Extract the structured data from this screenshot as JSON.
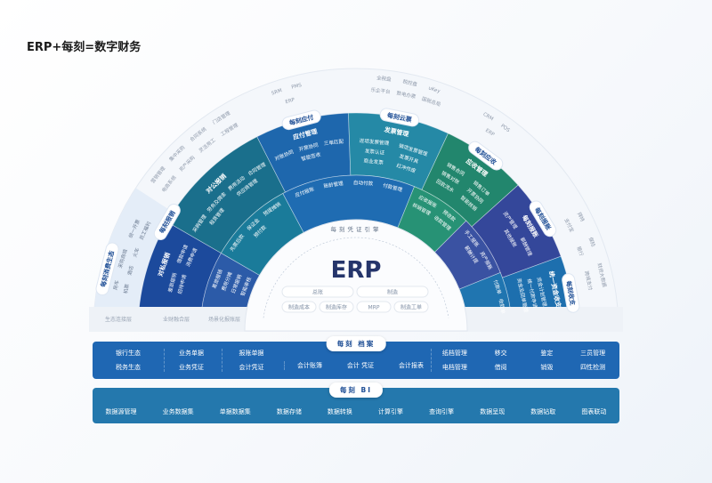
{
  "title": "ERP+每刻=数字财务",
  "colors": {
    "teal": "#1a6f8c",
    "blue": "#1e67ad",
    "dark_blue": "#1c4a9c",
    "indigo": "#34479a",
    "green": "#22866d",
    "light": "#e6eef8",
    "bar1": "#1f67b3",
    "bar2": "#2478ad"
  },
  "ecosystem": {
    "left": {
      "rows": [
        [
          "营销管理",
          "集中采购",
          "合同系统",
          "门店管理"
        ],
        [
          "电商系统",
          "资产采购",
          "灵活用工",
          "工程管理"
        ]
      ]
    },
    "payable": {
      "rows": [
        [
          "SRM",
          "PMS"
        ],
        [
          "ERP"
        ]
      ]
    },
    "invoice": {
      "rows": [
        [
          "全税盘",
          "税控盘",
          "uKey"
        ],
        [
          "乐企平台",
          "数电办票",
          "国税总局"
        ]
      ]
    },
    "receivable": {
      "rows": [
        [
          "CRM",
          "POS"
        ],
        [
          "ERP"
        ]
      ]
    },
    "fund": {
      "rows": [
        [
          "拜特",
          "保险",
          "财资大数据"
        ],
        [
          "支付宝",
          "银行",
          "跨境支付"
        ]
      ]
    }
  },
  "consumer": {
    "badge": "每刻消费生态",
    "rows": [
      [
        "机票",
        "酒店",
        "火车",
        "员工福利"
      ],
      [
        "用车",
        "采购商城",
        "统一开票"
      ]
    ]
  },
  "outer": [
    {
      "badge": "每刻报销",
      "title": "对私报销",
      "items": [
        "差旅报销",
        "借款申请",
        "招待申请",
        "消费申请"
      ]
    },
    {
      "badge": "",
      "title": "对公报销",
      "items": [
        "采购管理",
        "劳务及佣金",
        "费用活动",
        "合同管理",
        "租赁管理",
        "供应商管理"
      ]
    },
    {
      "badge": "每刻应付",
      "title": "应付管理",
      "items": [
        "对账协同",
        "开票协同",
        "三单匹配",
        "智能签收"
      ]
    },
    {
      "badge": "每刻云票",
      "title": "发票管理",
      "items": [
        "进项发票管理",
        "销项发票管理",
        "发票认证",
        "发票开具",
        "商业发票",
        "红冲作废"
      ]
    },
    {
      "badge": "每刻应收",
      "title": "应收管理",
      "items": [
        "销售合同",
        "销售订单",
        "销售对账",
        "开票协同",
        "回款流水",
        "智能核销"
      ]
    },
    {
      "badge": "每刻报账",
      "title": "每刻报账",
      "items": [
        "资产管理",
        "薪酬管理",
        "其他报账"
      ]
    },
    {
      "badge": "每刻收支",
      "title": "统一资金收支",
      "items": [
        "资金计划管理",
        "统一付款申请",
        "资金及回单管理"
      ]
    }
  ],
  "inner": [
    {
      "items": [
        "差旅报销",
        "费用分摊",
        "日常报销",
        "智能审核"
      ]
    },
    {
      "items": [
        "先票后款",
        "保证金",
        "预提摊销",
        "预付款"
      ]
    },
    {
      "items": [
        "应付报账",
        "账龄管理",
        "自动付款",
        "付款管理"
      ]
    },
    {
      "items": [
        "应收报账",
        "预收款",
        "核销管理",
        "收款管理"
      ]
    },
    {
      "items": [
        "手工报账",
        "资产报账",
        "薪酬计提"
      ]
    },
    {
      "items": [
        "付款单",
        "收款单"
      ]
    }
  ],
  "layers": [
    "生态连接层",
    "业财融合层",
    "场景化报账层"
  ],
  "center": {
    "engine": "每刻凭证引擎",
    "erp": "ERP",
    "pills": [
      "总账",
      "制造",
      "制造成本",
      "制造库存",
      "MRP",
      "制造工单"
    ]
  },
  "archive": {
    "label": "每刻 档案",
    "col1": [
      "银行生态",
      "税务生态"
    ],
    "col2": [
      "业务单据",
      "业务凭证"
    ],
    "col3": [
      "报账单据",
      "会计凭证"
    ],
    "mid": [
      "会计账簿",
      "会计 凭证",
      "会计报表"
    ],
    "right": [
      [
        "纸档管理",
        "移交",
        "鉴定",
        "三员管理"
      ],
      [
        "电档管理",
        "借阅",
        "销毁",
        "四性检测"
      ]
    ]
  },
  "bi": {
    "label": "每刻 BI",
    "items": [
      "数据源管理",
      "业务数据集",
      "单据数据集",
      "数据存储",
      "数据转换",
      "计算引擎",
      "查询引擎",
      "数据呈现",
      "数据钻取",
      "图表联动"
    ]
  }
}
